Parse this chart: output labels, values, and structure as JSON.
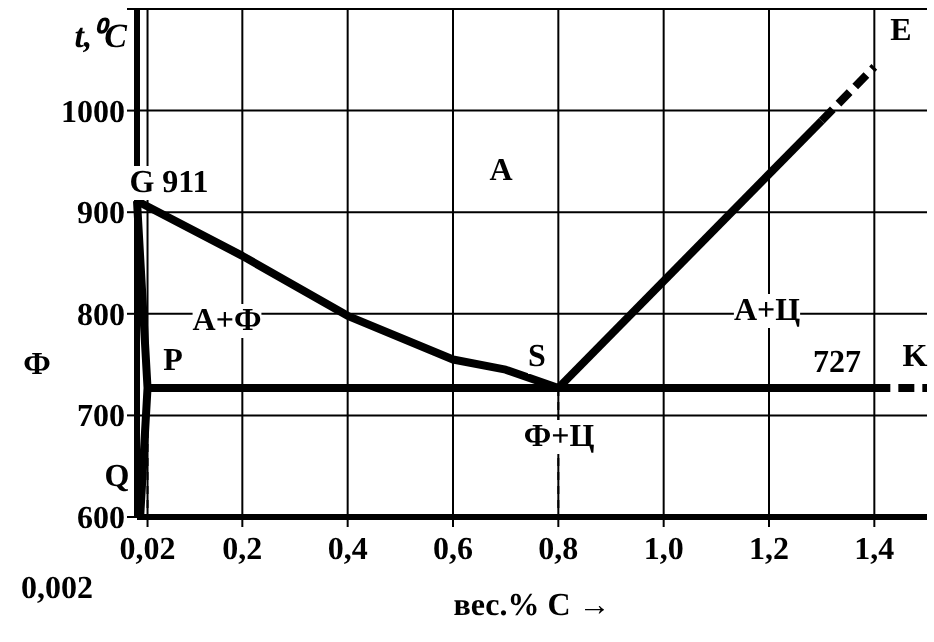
{
  "chart_data": {
    "type": "line",
    "xlabel": "вес.% С →",
    "ylabel": "t,⁰C",
    "xlim": [
      0,
      1.5
    ],
    "ylim": [
      600,
      1100
    ],
    "xticks": [
      {
        "value": 0.02,
        "label": "0,02"
      },
      {
        "value": 0.2,
        "label": "0,2"
      },
      {
        "value": 0.4,
        "label": "0,4"
      },
      {
        "value": 0.6,
        "label": "0,6"
      },
      {
        "value": 0.8,
        "label": "0,8"
      },
      {
        "value": 1.0,
        "label": "1,0"
      },
      {
        "value": 1.2,
        "label": "1,2"
      },
      {
        "value": 1.4,
        "label": "1,4"
      }
    ],
    "yticks": [
      600,
      700,
      800,
      900,
      1000,
      {
        "value": 1100,
        "label": null
      }
    ],
    "grid": true,
    "series": [
      {
        "color": "#000000",
        "x": [
          0,
          0.2,
          0.4,
          0.6,
          0.7,
          0.8
        ],
        "values": [
          911,
          857,
          798,
          755,
          745,
          727
        ]
      },
      {
        "color": "#000000",
        "x": [
          0,
          0.02,
          0.006
        ],
        "values": [
          911,
          727,
          600
        ]
      },
      {
        "color": "#000000",
        "x": [
          0.8,
          1.3
        ],
        "values": [
          727,
          990
        ]
      },
      {
        "color": "#000000",
        "x": [
          1.3,
          1.4
        ],
        "values": [
          990,
          1043
        ],
        "line_style": "dashed"
      },
      {
        "color": "#000000",
        "x": [
          0.02,
          1.4
        ],
        "values": [
          727,
          727
        ]
      },
      {
        "color": "#000000",
        "x": [
          1.4,
          1.5
        ],
        "values": [
          727,
          727
        ],
        "line_style": "dashed"
      },
      {
        "color": "#000000",
        "x": [
          0.02,
          0.02
        ],
        "values": [
          727,
          600
        ],
        "line_style": "dotted"
      },
      {
        "color": "#000000",
        "x": [
          0.8,
          0.8
        ],
        "values": [
          727,
          600
        ],
        "line_style": "dotted"
      }
    ],
    "annotations": [
      "G 911",
      "P",
      "Q",
      "Ф",
      "S",
      "727",
      "K",
      "E",
      "А",
      "А+Ф",
      "А+Ц",
      "Ф+Ц",
      "0,002"
    ]
  }
}
